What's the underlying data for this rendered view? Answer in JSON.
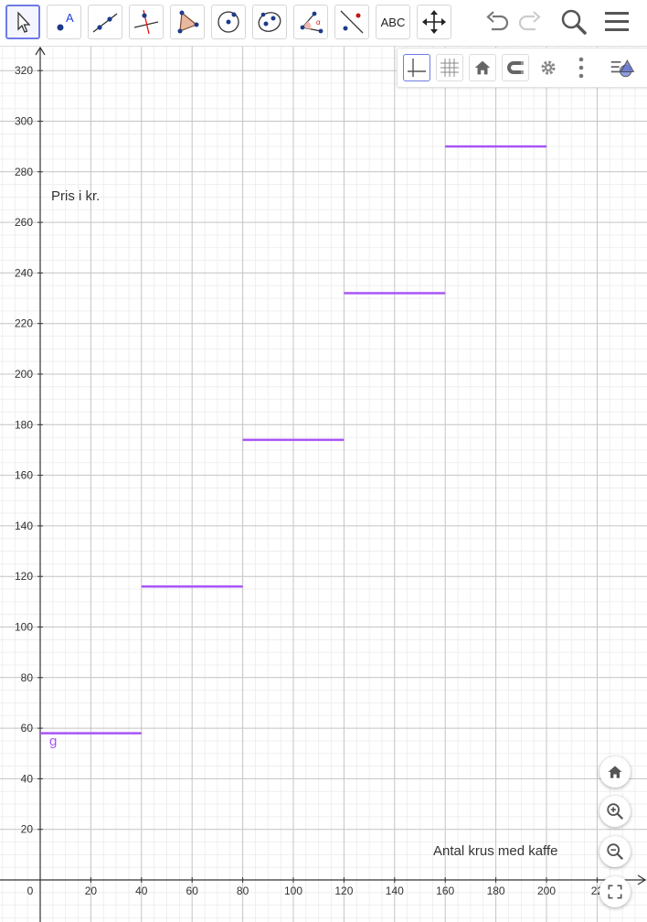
{
  "toolbar": {
    "tools": [
      {
        "name": "move"
      },
      {
        "name": "point",
        "glyph": "A"
      },
      {
        "name": "line"
      },
      {
        "name": "perpendicular-line"
      },
      {
        "name": "polygon"
      },
      {
        "name": "circle-center-point"
      },
      {
        "name": "conic"
      },
      {
        "name": "angle",
        "glyph": "α"
      },
      {
        "name": "reflect"
      },
      {
        "name": "text",
        "glyph": "ABC"
      },
      {
        "name": "move-graphics-view"
      }
    ]
  },
  "graph": {
    "x_ticks": [
      "0",
      "20",
      "40",
      "60",
      "80",
      "100",
      "120",
      "140",
      "160",
      "180",
      "200",
      "22"
    ],
    "y_ticks": [
      "20",
      "40",
      "60",
      "80",
      "100",
      "120",
      "140",
      "160",
      "180",
      "200",
      "220",
      "240",
      "260",
      "280",
      "300",
      "320"
    ],
    "y_axis_label": "Pris i kr.",
    "x_axis_label": "Antal krus med kaffe",
    "function_label": "g",
    "function_color": "#a855f7",
    "segments": [
      {
        "x0": 0,
        "x1": 40,
        "y": 58
      },
      {
        "x0": 40,
        "x1": 80,
        "y": 116
      },
      {
        "x0": 80,
        "x1": 120,
        "y": 174
      },
      {
        "x0": 120,
        "x1": 160,
        "y": 232
      },
      {
        "x0": 160,
        "x1": 200,
        "y": 290
      }
    ],
    "x_range": [
      -15,
      240
    ],
    "y_range": [
      -17,
      345
    ]
  }
}
